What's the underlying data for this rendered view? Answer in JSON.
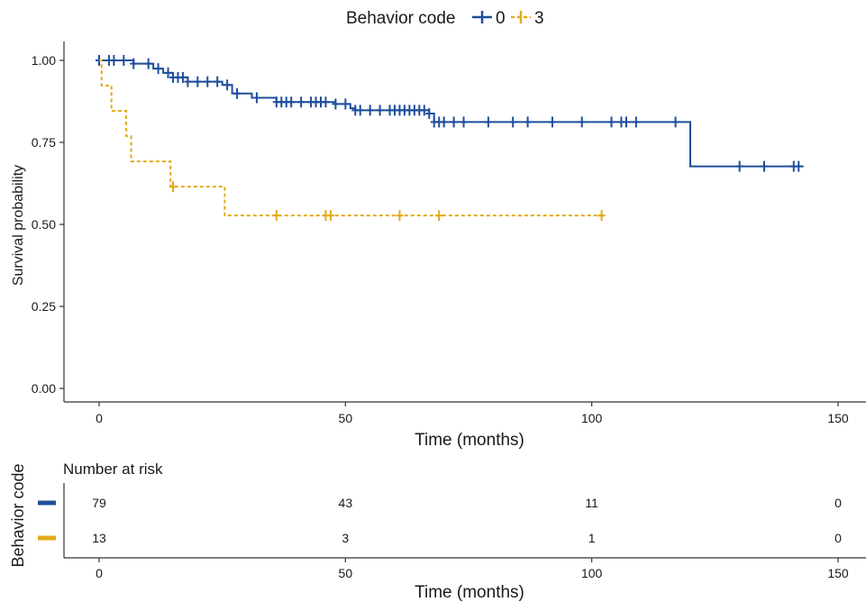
{
  "legend": {
    "title": "Behavior code",
    "entries": [
      {
        "label": "0",
        "color": "#1f4e9c"
      },
      {
        "label": "3",
        "color": "#e3aa1c"
      }
    ]
  },
  "chart_data": [
    {
      "type": "line",
      "subtype": "kaplan-meier step",
      "xlabel": "Time (months)",
      "ylabel": "Survival probability",
      "xlim": [
        -5,
        150
      ],
      "ylim": [
        0,
        1
      ],
      "xticks": [
        0,
        50,
        100,
        150
      ],
      "yticks": [
        0.0,
        0.25,
        0.5,
        0.75,
        1.0
      ],
      "ytick_labels": [
        "0.00",
        "0.25",
        "0.50",
        "0.75",
        "1.00"
      ],
      "legend_position": "top",
      "grid": false,
      "series": [
        {
          "name": "0",
          "color": "#1f4e9c",
          "style": "solid",
          "steps": [
            [
              0,
              1.0
            ],
            [
              7,
              0.99
            ],
            [
              11,
              0.975
            ],
            [
              13,
              0.962
            ],
            [
              15,
              0.948
            ],
            [
              18,
              0.935
            ],
            [
              25,
              0.925
            ],
            [
              27,
              0.899
            ],
            [
              31,
              0.886
            ],
            [
              36,
              0.873
            ],
            [
              48,
              0.867
            ],
            [
              51,
              0.854
            ],
            [
              52,
              0.848
            ],
            [
              67,
              0.838
            ],
            [
              68,
              0.812
            ],
            [
              119,
              0.812
            ],
            [
              120,
              0.677
            ],
            [
              143,
              0.677
            ]
          ],
          "censor_times": [
            0,
            2,
            3,
            5,
            7,
            10,
            12,
            14,
            15,
            16,
            17,
            18,
            20,
            22,
            24,
            26,
            28,
            32,
            36,
            37,
            38,
            39,
            41,
            43,
            44,
            45,
            46,
            48,
            50,
            52,
            53,
            55,
            57,
            59,
            60,
            61,
            62,
            63,
            64,
            65,
            66,
            67,
            68,
            69,
            70,
            72,
            74,
            79,
            84,
            87,
            92,
            98,
            104,
            106,
            107,
            109,
            117,
            130,
            135,
            141,
            142
          ]
        },
        {
          "name": "3",
          "color": "#e3aa1c",
          "style": "dashed",
          "steps": [
            [
              0,
              1.0
            ],
            [
              0.5,
              0.923
            ],
            [
              2.5,
              0.846
            ],
            [
              5.5,
              0.769
            ],
            [
              6.5,
              0.692
            ],
            [
              14.5,
              0.615
            ],
            [
              25.5,
              0.527
            ],
            [
              102,
              0.527
            ]
          ],
          "censor_times": [
            15,
            36,
            46,
            47,
            61,
            69,
            102
          ]
        }
      ]
    },
    {
      "type": "table",
      "title": "Number at risk",
      "ylabel": "Behavior code",
      "xlabel": "Time (months)",
      "xticks": [
        0,
        50,
        100,
        150
      ],
      "rows": [
        {
          "series": "0",
          "color": "#1f4e9c",
          "values": [
            79,
            43,
            11,
            0
          ]
        },
        {
          "series": "3",
          "color": "#e3aa1c",
          "values": [
            13,
            3,
            1,
            0
          ]
        }
      ]
    }
  ]
}
